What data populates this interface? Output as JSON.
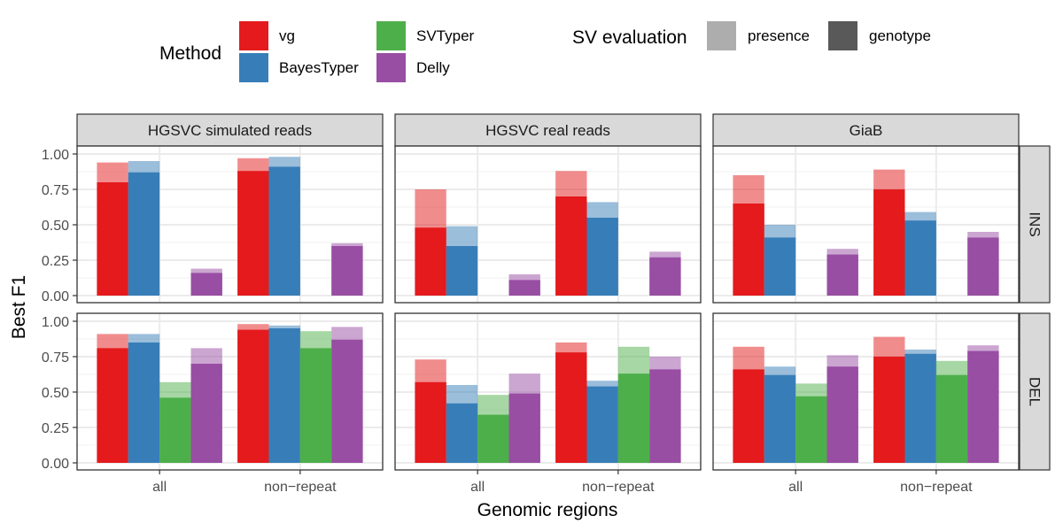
{
  "chart_data": {
    "type": "bar",
    "ylabel": "Best F1",
    "xlabel": "Genomic regions",
    "ylim": [
      0,
      1.05
    ],
    "yticks": [
      "0.00",
      "0.25",
      "0.50",
      "0.75",
      "1.00"
    ],
    "ytick_values": [
      0,
      0.25,
      0.5,
      0.75,
      1.0
    ],
    "categories": [
      "all",
      "non−repeat"
    ],
    "columns": [
      "HGSVC simulated reads",
      "HGSVC real reads",
      "GiaB"
    ],
    "rows": [
      "INS",
      "DEL"
    ],
    "methods": [
      "vg",
      "BayesTyper",
      "SVTyper",
      "Delly"
    ],
    "evaluations": [
      "presence",
      "genotype"
    ],
    "legend": {
      "method_title": "Method",
      "evaluation_title": "SV evaluation",
      "method_colors": {
        "vg": "#E41A1C",
        "BayesTyper": "#377EB8",
        "SVTyper": "#4DAF4A",
        "Delly": "#984EA3"
      },
      "evaluation_swatches": {
        "presence": "#ADADAD",
        "genotype": "#595959"
      }
    },
    "colors": {
      "vg": "#E41A1C",
      "BayesTyper": "#377EB8",
      "SVTyper": "#4DAF4A",
      "Delly": "#984EA3"
    },
    "presence_alpha": 0.5,
    "grid": true,
    "panels": [
      {
        "row": "INS",
        "column": "HGSVC simulated reads",
        "values": {
          "all": {
            "vg": {
              "presence": 0.94,
              "genotype": 0.8
            },
            "BayesTyper": {
              "presence": 0.95,
              "genotype": 0.87
            },
            "SVTyper": null,
            "Delly": {
              "presence": 0.19,
              "genotype": 0.16
            }
          },
          "non−repeat": {
            "vg": {
              "presence": 0.97,
              "genotype": 0.88
            },
            "BayesTyper": {
              "presence": 0.98,
              "genotype": 0.91
            },
            "SVTyper": null,
            "Delly": {
              "presence": 0.37,
              "genotype": 0.35
            }
          }
        }
      },
      {
        "row": "INS",
        "column": "HGSVC real reads",
        "values": {
          "all": {
            "vg": {
              "presence": 0.75,
              "genotype": 0.48
            },
            "BayesTyper": {
              "presence": 0.49,
              "genotype": 0.35
            },
            "SVTyper": null,
            "Delly": {
              "presence": 0.15,
              "genotype": 0.11
            }
          },
          "non−repeat": {
            "vg": {
              "presence": 0.88,
              "genotype": 0.7
            },
            "BayesTyper": {
              "presence": 0.66,
              "genotype": 0.55
            },
            "SVTyper": null,
            "Delly": {
              "presence": 0.31,
              "genotype": 0.27
            }
          }
        }
      },
      {
        "row": "INS",
        "column": "GiaB",
        "values": {
          "all": {
            "vg": {
              "presence": 0.85,
              "genotype": 0.65
            },
            "BayesTyper": {
              "presence": 0.5,
              "genotype": 0.41
            },
            "SVTyper": null,
            "Delly": {
              "presence": 0.33,
              "genotype": 0.29
            }
          },
          "non−repeat": {
            "vg": {
              "presence": 0.89,
              "genotype": 0.75
            },
            "BayesTyper": {
              "presence": 0.59,
              "genotype": 0.53
            },
            "SVTyper": null,
            "Delly": {
              "presence": 0.45,
              "genotype": 0.41
            }
          }
        }
      },
      {
        "row": "DEL",
        "column": "HGSVC simulated reads",
        "values": {
          "all": {
            "vg": {
              "presence": 0.91,
              "genotype": 0.81
            },
            "BayesTyper": {
              "presence": 0.91,
              "genotype": 0.85
            },
            "SVTyper": {
              "presence": 0.57,
              "genotype": 0.46
            },
            "Delly": {
              "presence": 0.81,
              "genotype": 0.7
            }
          },
          "non−repeat": {
            "vg": {
              "presence": 0.98,
              "genotype": 0.94
            },
            "BayesTyper": {
              "presence": 0.97,
              "genotype": 0.95
            },
            "SVTyper": {
              "presence": 0.93,
              "genotype": 0.81
            },
            "Delly": {
              "presence": 0.96,
              "genotype": 0.87
            }
          }
        }
      },
      {
        "row": "DEL",
        "column": "HGSVC real reads",
        "values": {
          "all": {
            "vg": {
              "presence": 0.73,
              "genotype": 0.57
            },
            "BayesTyper": {
              "presence": 0.55,
              "genotype": 0.42
            },
            "SVTyper": {
              "presence": 0.48,
              "genotype": 0.34
            },
            "Delly": {
              "presence": 0.63,
              "genotype": 0.49
            }
          },
          "non−repeat": {
            "vg": {
              "presence": 0.85,
              "genotype": 0.78
            },
            "BayesTyper": {
              "presence": 0.58,
              "genotype": 0.54
            },
            "SVTyper": {
              "presence": 0.82,
              "genotype": 0.63
            },
            "Delly": {
              "presence": 0.75,
              "genotype": 0.66
            }
          }
        }
      },
      {
        "row": "DEL",
        "column": "GiaB",
        "values": {
          "all": {
            "vg": {
              "presence": 0.82,
              "genotype": 0.66
            },
            "BayesTyper": {
              "presence": 0.68,
              "genotype": 0.62
            },
            "SVTyper": {
              "presence": 0.56,
              "genotype": 0.47
            },
            "Delly": {
              "presence": 0.76,
              "genotype": 0.68
            }
          },
          "non−repeat": {
            "vg": {
              "presence": 0.89,
              "genotype": 0.75
            },
            "BayesTyper": {
              "presence": 0.8,
              "genotype": 0.77
            },
            "SVTyper": {
              "presence": 0.72,
              "genotype": 0.62
            },
            "Delly": {
              "presence": 0.83,
              "genotype": 0.79
            }
          }
        }
      }
    ]
  }
}
